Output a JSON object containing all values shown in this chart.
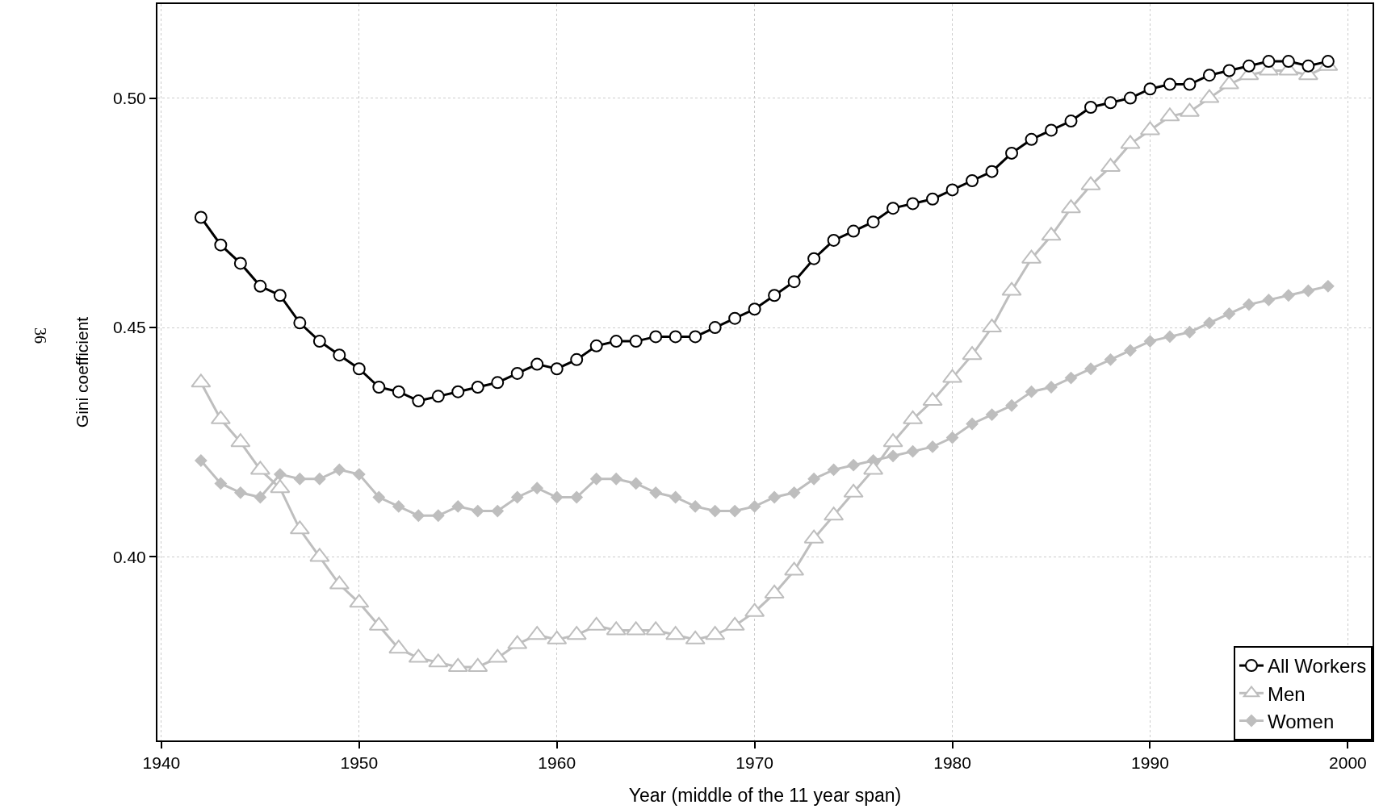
{
  "chart_data": {
    "type": "line",
    "xlabel": "Year (middle of the 11 year span)",
    "ylabel": "Gini coefficient",
    "annotations": [
      "36"
    ],
    "x": [
      1942,
      1943,
      1944,
      1945,
      1946,
      1947,
      1948,
      1949,
      1950,
      1951,
      1952,
      1953,
      1954,
      1955,
      1956,
      1957,
      1958,
      1959,
      1960,
      1961,
      1962,
      1963,
      1964,
      1965,
      1966,
      1967,
      1968,
      1969,
      1970,
      1971,
      1972,
      1973,
      1974,
      1975,
      1976,
      1977,
      1978,
      1979,
      1980,
      1981,
      1982,
      1983,
      1984,
      1985,
      1986,
      1987,
      1988,
      1989,
      1990,
      1991,
      1992,
      1993,
      1994,
      1995,
      1996,
      1997,
      1998,
      1999
    ],
    "series": [
      {
        "name": "All Workers",
        "color": "#000000",
        "marker": "circle",
        "values": [
          0.474,
          0.468,
          0.464,
          0.459,
          0.457,
          0.451,
          0.447,
          0.444,
          0.441,
          0.437,
          0.436,
          0.434,
          0.435,
          0.436,
          0.437,
          0.438,
          0.44,
          0.442,
          0.441,
          0.443,
          0.446,
          0.447,
          0.447,
          0.448,
          0.448,
          0.448,
          0.45,
          0.452,
          0.454,
          0.457,
          0.46,
          0.465,
          0.469,
          0.471,
          0.473,
          0.476,
          0.477,
          0.478,
          0.48,
          0.482,
          0.484,
          0.488,
          0.491,
          0.493,
          0.495,
          0.498,
          0.499,
          0.5,
          0.502,
          0.503,
          0.503,
          0.505,
          0.506,
          0.507,
          0.508,
          0.508,
          0.507,
          0.508
        ]
      },
      {
        "name": "Men",
        "color": "#bebebe",
        "marker": "triangle",
        "values": [
          0.438,
          0.43,
          0.425,
          0.419,
          0.415,
          0.406,
          0.4,
          0.394,
          0.39,
          0.385,
          0.38,
          0.378,
          0.377,
          0.376,
          0.376,
          0.378,
          0.381,
          0.383,
          0.382,
          0.383,
          0.385,
          0.384,
          0.384,
          0.384,
          0.383,
          0.382,
          0.383,
          0.385,
          0.388,
          0.392,
          0.397,
          0.404,
          0.409,
          0.414,
          0.419,
          0.425,
          0.43,
          0.434,
          0.439,
          0.444,
          0.45,
          0.458,
          0.465,
          0.47,
          0.476,
          0.481,
          0.485,
          0.49,
          0.493,
          0.496,
          0.497,
          0.5,
          0.503,
          0.505,
          0.506,
          0.506,
          0.505,
          0.507
        ]
      },
      {
        "name": "Women",
        "color": "#bebebe",
        "marker": "diamond",
        "values": [
          0.421,
          0.416,
          0.414,
          0.413,
          0.418,
          0.417,
          0.417,
          0.419,
          0.418,
          0.413,
          0.411,
          0.409,
          0.409,
          0.411,
          0.41,
          0.41,
          0.413,
          0.415,
          0.413,
          0.413,
          0.417,
          0.417,
          0.416,
          0.414,
          0.413,
          0.411,
          0.41,
          0.41,
          0.411,
          0.413,
          0.414,
          0.417,
          0.419,
          0.42,
          0.421,
          0.422,
          0.423,
          0.424,
          0.426,
          0.429,
          0.431,
          0.433,
          0.436,
          0.437,
          0.439,
          0.441,
          0.443,
          0.445,
          0.447,
          0.448,
          0.449,
          0.451,
          0.453,
          0.455,
          0.456,
          0.457,
          0.458,
          0.459
        ]
      }
    ],
    "xlim": [
      1939.8,
      2001.25
    ],
    "xticks": [
      1940,
      1950,
      1960,
      1970,
      1980,
      1990,
      2000
    ],
    "ylim": [
      0.36,
      0.5205
    ],
    "yticks": [
      {
        "value": 0.4,
        "label": "0.40"
      },
      {
        "value": 0.45,
        "label": "0.45"
      },
      {
        "value": 0.5,
        "label": "0.50"
      }
    ],
    "grid": true,
    "legend": "bottom right",
    "line_style": "solid"
  }
}
